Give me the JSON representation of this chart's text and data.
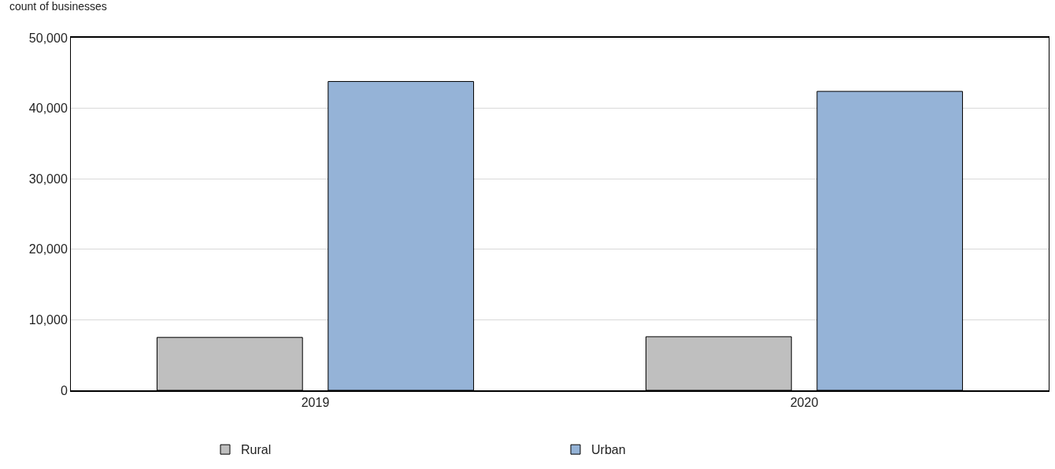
{
  "chart_data": {
    "type": "bar",
    "ylabel": "count of businesses",
    "categories": [
      "2019",
      "2020"
    ],
    "series": [
      {
        "name": "Rural",
        "color": "#bfbfbf",
        "values": [
          7500,
          7600
        ]
      },
      {
        "name": "Urban",
        "color": "#95b3d7",
        "values": [
          43800,
          42400
        ]
      }
    ],
    "ylim": [
      0,
      50000
    ],
    "yticks": [
      {
        "value": 0,
        "label": "0"
      },
      {
        "value": 10000,
        "label": "10,000"
      },
      {
        "value": 20000,
        "label": "20,000"
      },
      {
        "value": 30000,
        "label": "30,000"
      },
      {
        "value": 40000,
        "label": "40,000"
      },
      {
        "value": 50000,
        "label": "50,000"
      }
    ],
    "grid": "y",
    "legend": "bottom"
  }
}
